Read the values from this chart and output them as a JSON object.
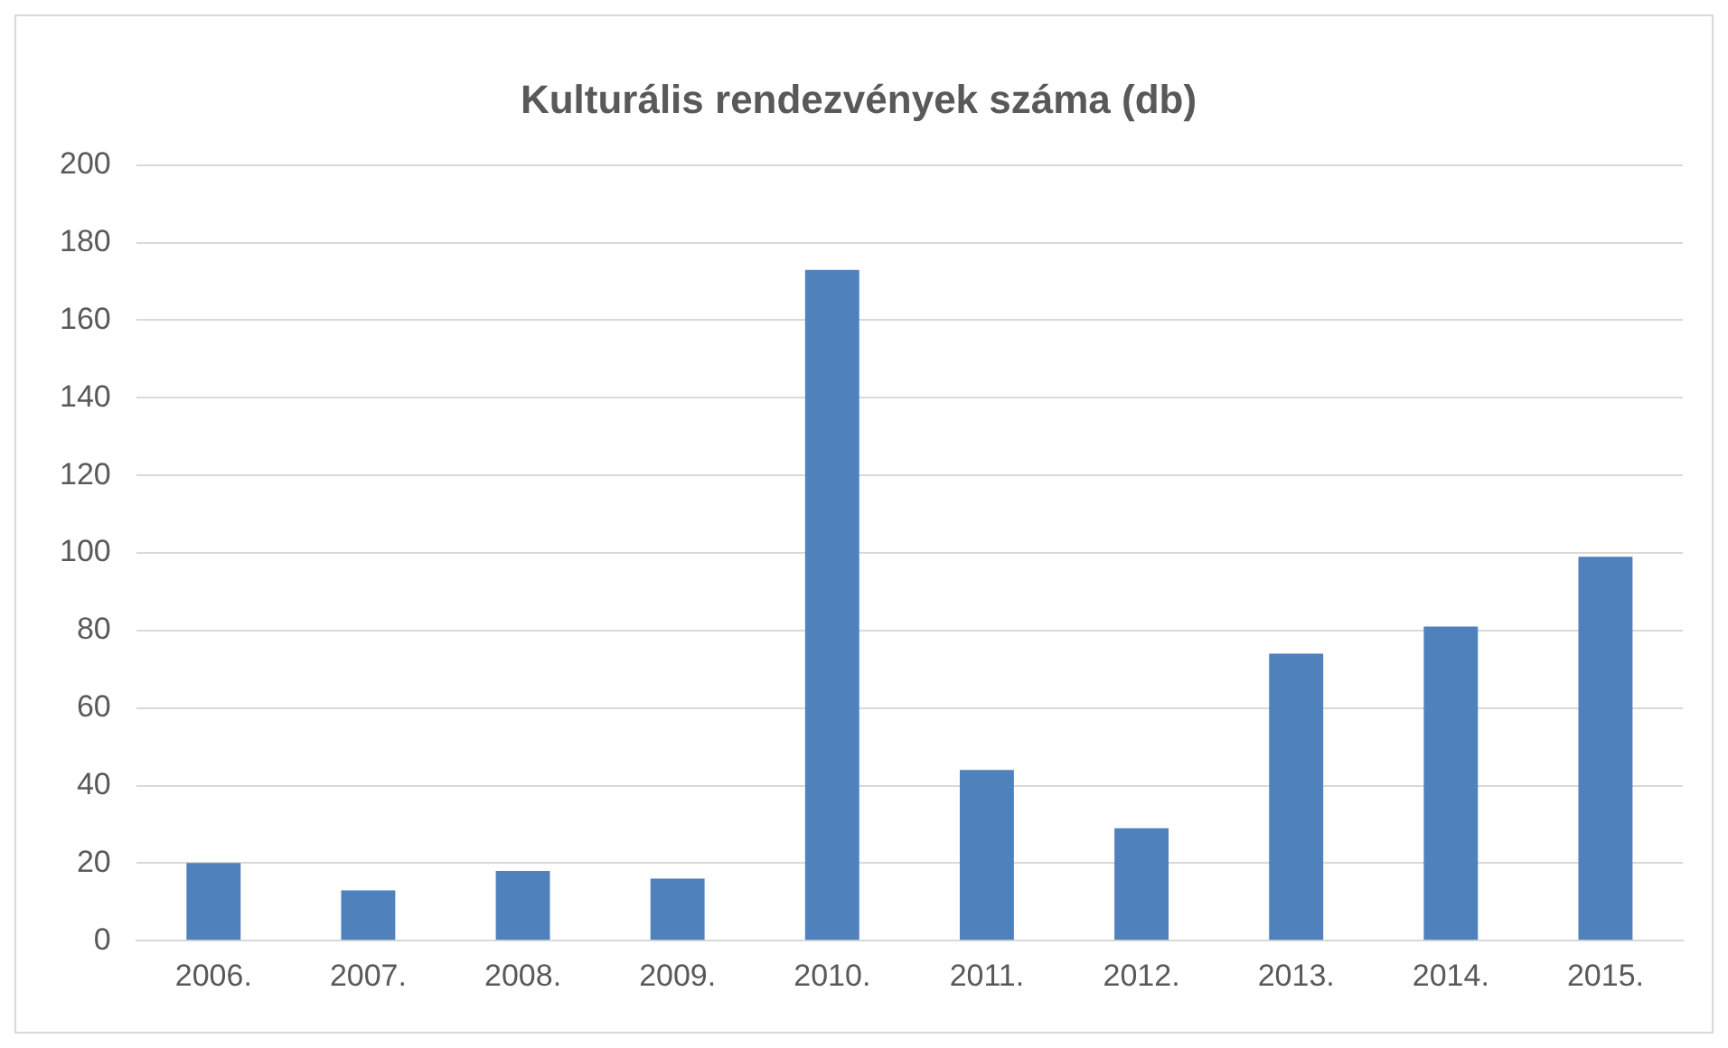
{
  "chart_data": {
    "type": "bar",
    "title": "Kulturális rendezvények száma (db)",
    "categories": [
      "2006.",
      "2007.",
      "2008.",
      "2009.",
      "2010.",
      "2011.",
      "2012.",
      "2013.",
      "2014.",
      "2015."
    ],
    "values": [
      20,
      13,
      18,
      16,
      173,
      44,
      29,
      74,
      81,
      99
    ],
    "color": "#4f81bd",
    "ylim": [
      0,
      200
    ],
    "yticks": [
      0,
      20,
      40,
      60,
      80,
      100,
      120,
      140,
      160,
      180,
      200
    ],
    "grid": "y",
    "legend": false
  }
}
